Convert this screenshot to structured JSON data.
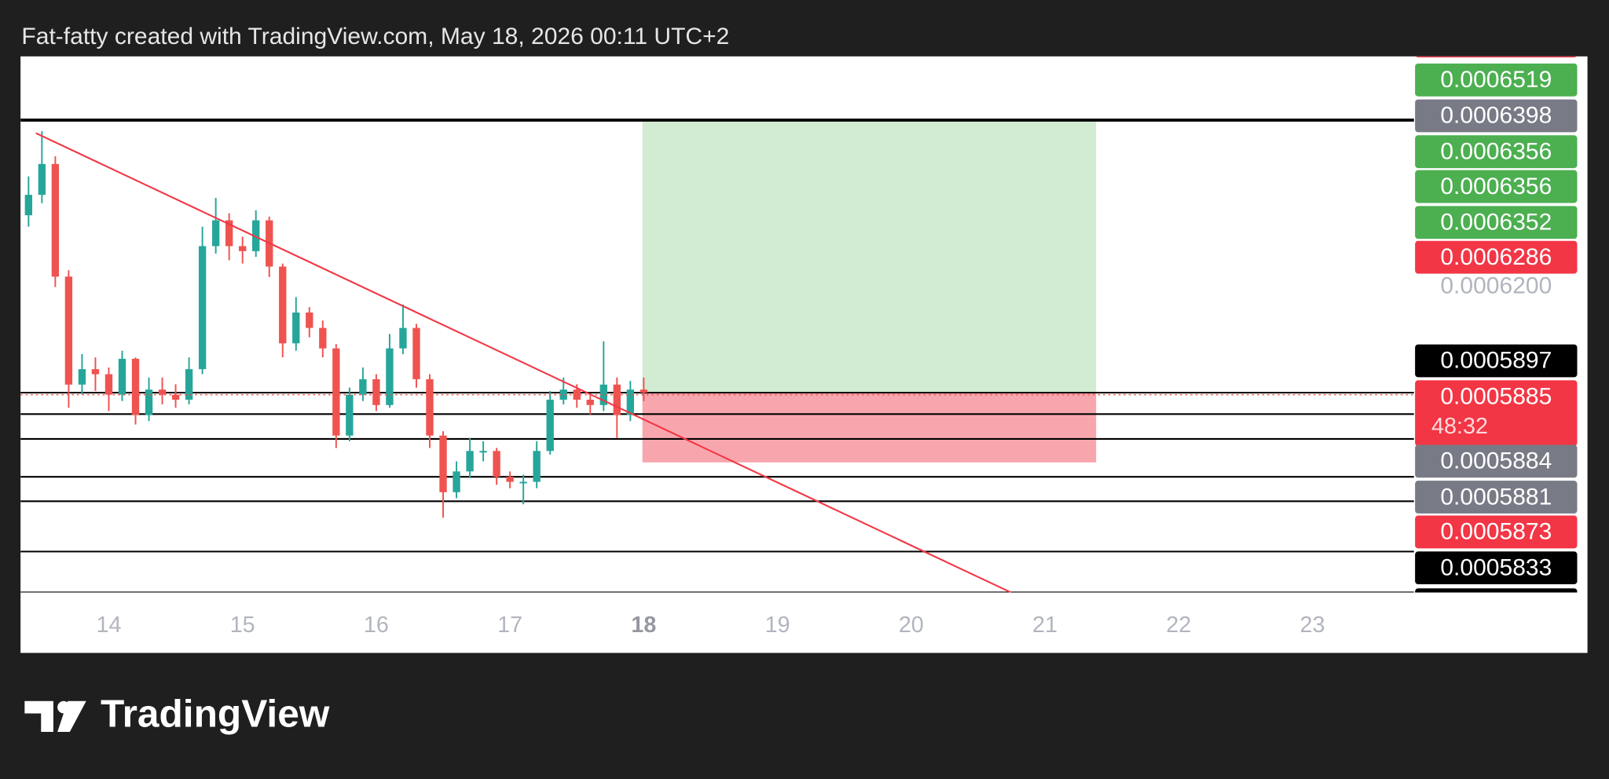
{
  "header": "Fat-fatty created with TradingView.com, May 18, 2026 00:11 UTC+2",
  "brand": "TradingView",
  "chart_data": {
    "type": "candlestick",
    "x": [
      13.4,
      13.5,
      13.6,
      13.7,
      13.8,
      13.9,
      14.0,
      14.1,
      14.2,
      14.3,
      14.4,
      14.5,
      14.6,
      14.7,
      14.8,
      14.9,
      15.0,
      15.1,
      15.2,
      15.3,
      15.4,
      15.5,
      15.6,
      15.7,
      15.8,
      15.9,
      16.0,
      16.1,
      16.2,
      16.3,
      16.4,
      16.5,
      16.6,
      16.7,
      16.8,
      16.9,
      17.0,
      17.1,
      17.2,
      17.3,
      17.4,
      17.5,
      17.6,
      17.7,
      17.8,
      17.9,
      18.0
    ],
    "open": [
      0.0006414,
      0.0006475,
      0.0006567,
      0.0006231,
      0.0005909,
      0.0005955,
      0.000594,
      0.0005879,
      0.0005986,
      0.0005818,
      0.0005894,
      0.0005879,
      0.0005864,
      0.0005955,
      0.0006322,
      0.0006399,
      0.0006322,
      0.0006307,
      0.0006399,
      0.0006261,
      0.0006032,
      0.0006124,
      0.0006078,
      0.0006017,
      0.0005757,
      0.0005879,
      0.0005925,
      0.0005848,
      0.0006017,
      0.0006078,
      0.0005925,
      0.0005757,
      0.0005588,
      0.000565,
      0.0005711,
      0.0005711,
      0.0005634,
      0.0005619,
      0.0005619,
      0.0005711,
      0.0005864,
      0.0005894,
      0.0005864,
      0.0005848,
      0.0005909,
      0.0005818,
      0.0005894
    ],
    "high": [
      0.000653,
      0.0006665,
      0.000659,
      0.000625,
      0.0006,
      0.000599,
      0.000596,
      0.000601,
      0.000599,
      0.000593,
      0.000593,
      0.000591,
      0.000599,
      0.000638,
      0.0006466,
      0.000642,
      0.000635,
      0.0006429,
      0.000641,
      0.000627,
      0.000617,
      0.000614,
      0.00061,
      0.000603,
      0.00059,
      0.000596,
      0.000594,
      0.000606,
      0.0006148,
      0.000609,
      0.000594,
      0.000577,
      0.000568,
      0.000575,
      0.000574,
      0.000572,
      0.000565,
      0.000564,
      0.000574,
      0.000589,
      0.000593,
      0.000591,
      0.000588,
      0.0006038,
      0.000593,
      0.000592,
      0.000593
    ],
    "low": [
      0.000638,
      0.000645,
      0.00062,
      0.000584,
      0.000588,
      0.000589,
      0.000583,
      0.000586,
      0.000579,
      0.00058,
      0.000585,
      0.000584,
      0.000585,
      0.000594,
      0.00063,
      0.000628,
      0.000627,
      0.000629,
      0.000623,
      0.000599,
      0.000601,
      0.000605,
      0.000599,
      0.000572,
      0.000574,
      0.000586,
      0.000583,
      0.000584,
      0.0006,
      0.00059,
      0.000572,
      0.0005512,
      0.000557,
      0.000563,
      0.000568,
      0.000561,
      0.00056,
      0.0005552,
      0.00056,
      0.00057,
      0.000585,
      0.000584,
      0.000582,
      0.000583,
      0.000575,
      0.00058,
      0.000586
    ],
    "close": [
      0.0006475,
      0.0006567,
      0.0006231,
      0.0005909,
      0.0005955,
      0.000594,
      0.0005879,
      0.0005986,
      0.0005818,
      0.0005894,
      0.0005879,
      0.0005864,
      0.0005955,
      0.0006322,
      0.0006399,
      0.0006322,
      0.0006307,
      0.0006399,
      0.0006261,
      0.0006032,
      0.0006124,
      0.0006078,
      0.0006017,
      0.0005757,
      0.0005879,
      0.0005925,
      0.0005848,
      0.0006017,
      0.0006078,
      0.0005925,
      0.0005757,
      0.0005588,
      0.000565,
      0.0005711,
      0.0005711,
      0.0005634,
      0.0005619,
      0.0005619,
      0.0005711,
      0.0005864,
      0.0005894,
      0.0005864,
      0.0005848,
      0.0005909,
      0.0005818,
      0.0005894,
      0.0005885
    ],
    "up_color": "#26a69a",
    "down_color": "#ef5350",
    "xlim": [
      13.34,
      23.76
    ],
    "xticks": [
      14,
      15,
      16,
      17,
      18,
      19,
      20,
      21,
      22,
      23
    ],
    "ylim": [
      0.0005289,
      0.0006888
    ],
    "yticks": [
      {
        "value": 0.00062,
        "label": "0.0006200"
      }
    ],
    "hlines": {
      "values": [
        0.0006698,
        0.0005885,
        0.0005821,
        0.0005747,
        0.0005634,
        0.0005561,
        0.0005411,
        0.0005289
      ],
      "color": "#000000"
    },
    "trendline": {
      "x": [
        13.455,
        20.746
      ],
      "y": [
        0.0006659,
        0.0005289
      ],
      "color": "#f23645"
    },
    "position": {
      "x": [
        17.99,
        21.383
      ],
      "entry": 0.0005885,
      "target": 0.0006698,
      "stop": 0.0005677,
      "profit_color": "#d1ecd3",
      "loss_color": "#f8a6ad"
    },
    "price_tags": [
      {
        "label": "0.0006519",
        "color": "#4caf50"
      },
      {
        "label": "0.0006398",
        "color": "#787b86"
      },
      {
        "label": "0.0006356",
        "color": "#4caf50"
      },
      {
        "label": "0.0006356",
        "color": "#4caf50"
      },
      {
        "label": "0.0006352",
        "color": "#4caf50"
      },
      {
        "label": "0.0006286",
        "color": "#f23645"
      },
      {
        "label": "0.0005897",
        "color": "#000000"
      },
      {
        "label": "0.0005885",
        "sub": "48:32",
        "color": "#f23645"
      },
      {
        "label": "0.0005884",
        "color": "#787b86"
      },
      {
        "label": "0.0005881",
        "color": "#787b86"
      },
      {
        "label": "0.0005873",
        "color": "#f23645"
      },
      {
        "label": "0.0005833",
        "color": "#000000"
      }
    ]
  }
}
